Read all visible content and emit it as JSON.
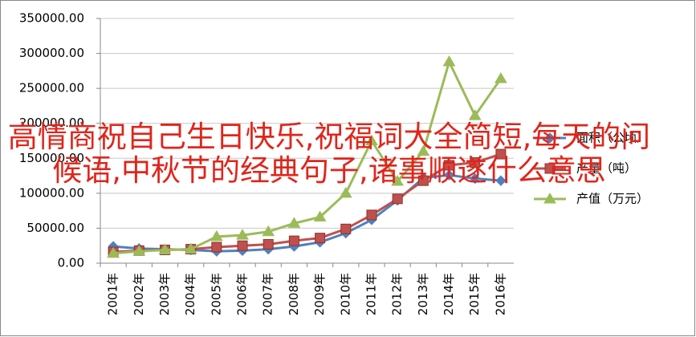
{
  "chart_data": {
    "type": "line",
    "categories": [
      "2001年",
      "2002年",
      "2003年",
      "2004年",
      "2005年",
      "2006年",
      "2007年",
      "2008年",
      "2009年",
      "2010年",
      "2011年",
      "2012年",
      "2013年",
      "2014年",
      "2015年",
      "2016年"
    ],
    "series": [
      {
        "name": "面积（公顷）",
        "color": "#4f81bd",
        "marker": "diamond",
        "values": [
          24000,
          21000,
          20000,
          19000,
          17000,
          18000,
          20000,
          24000,
          30000,
          43000,
          62000,
          90000,
          122000,
          126000,
          121000,
          118000
        ]
      },
      {
        "name": "产量（吨）",
        "color": "#c0504d",
        "marker": "square",
        "values": [
          16000,
          18000,
          19000,
          20000,
          23000,
          25000,
          27000,
          32000,
          36000,
          49000,
          69000,
          92000,
          118000,
          140000,
          144000,
          156000
        ]
      },
      {
        "name": "产值（万元）",
        "color": "#9bbb59",
        "marker": "triangle",
        "values": [
          14000,
          17000,
          19000,
          20000,
          38000,
          40000,
          45000,
          57000,
          66000,
          100000,
          175000,
          117000,
          160000,
          288000,
          211000,
          264000
        ]
      }
    ],
    "ylim": [
      0,
      350000
    ],
    "yticks": [
      {
        "value": 0,
        "label": "0.00"
      },
      {
        "value": 50000,
        "label": "50000.00"
      },
      {
        "value": 100000,
        "label": "100000.00"
      },
      {
        "value": 150000,
        "label": "150000.00"
      },
      {
        "value": 200000,
        "label": "200000.00"
      },
      {
        "value": 250000,
        "label": "250000.00"
      },
      {
        "value": 300000,
        "label": "300000.00"
      },
      {
        "value": 350000,
        "label": "350000.00"
      }
    ],
    "grid": true,
    "legend": "right"
  },
  "overlay_text": "高情商祝自己生日快乐,祝福词大全简短,每天的问候语,中秋节的经典句子,诸事顺遂什么意思"
}
